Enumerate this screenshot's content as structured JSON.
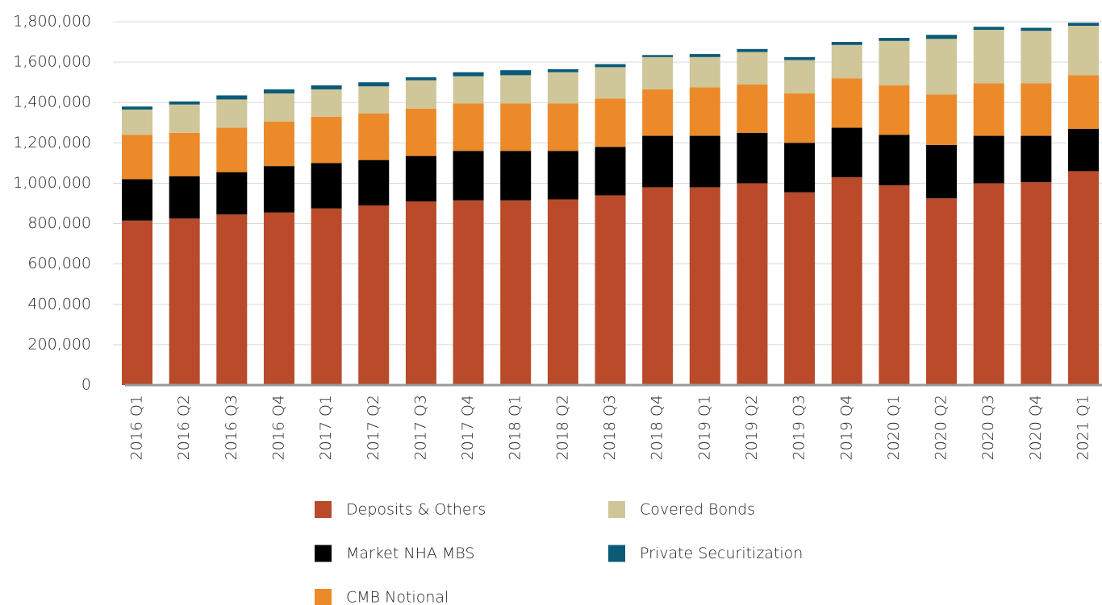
{
  "chart_data": {
    "type": "bar",
    "stacked": true,
    "categories": [
      "2016 Q1",
      "2016 Q2",
      "2016 Q3",
      "2016 Q4",
      "2017 Q1",
      "2017 Q2",
      "2017 Q3",
      "2017 Q4",
      "2018 Q1",
      "2018 Q2",
      "2018 Q3",
      "2018 Q4",
      "2019 Q1",
      "2019 Q2",
      "2019 Q3",
      "2019 Q4",
      "2020 Q1",
      "2020 Q2",
      "2020 Q3",
      "2020 Q4",
      "2021 Q1"
    ],
    "series": [
      {
        "name": "Deposits & Others",
        "color": "#b94a2a",
        "values": [
          815000,
          825000,
          845000,
          855000,
          875000,
          890000,
          910000,
          915000,
          915000,
          920000,
          940000,
          980000,
          980000,
          1000000,
          955000,
          1030000,
          990000,
          925000,
          1000000,
          1005000,
          1060000
        ]
      },
      {
        "name": "Market NHA MBS",
        "color": "#000000",
        "values": [
          205000,
          210000,
          210000,
          230000,
          225000,
          225000,
          225000,
          245000,
          245000,
          240000,
          240000,
          255000,
          255000,
          250000,
          245000,
          245000,
          250000,
          265000,
          235000,
          230000,
          210000
        ]
      },
      {
        "name": "CMB Notional",
        "color": "#ec8a2a",
        "values": [
          220000,
          215000,
          220000,
          220000,
          230000,
          230000,
          235000,
          235000,
          235000,
          235000,
          240000,
          230000,
          240000,
          240000,
          245000,
          245000,
          245000,
          250000,
          260000,
          260000,
          265000
        ]
      },
      {
        "name": "Covered Bonds",
        "color": "#cfc79a",
        "values": [
          125000,
          140000,
          140000,
          140000,
          135000,
          135000,
          140000,
          135000,
          140000,
          155000,
          155000,
          160000,
          150000,
          160000,
          165000,
          165000,
          220000,
          275000,
          265000,
          260000,
          245000
        ]
      },
      {
        "name": "Private Securitization",
        "color": "#0a5a78",
        "values": [
          15000,
          15000,
          20000,
          20000,
          20000,
          20000,
          15000,
          20000,
          25000,
          15000,
          15000,
          10000,
          15000,
          15000,
          15000,
          15000,
          15000,
          20000,
          15000,
          15000,
          15000
        ]
      }
    ],
    "ylim": [
      0,
      1800000
    ],
    "yticks": [
      0,
      {
        "value": 200000,
        "label": "200,000"
      },
      {
        "value": 400000,
        "label": "400,000"
      },
      {
        "value": 600000,
        "label": "600,000"
      },
      {
        "value": 800000,
        "label": "800,000"
      },
      {
        "value": 1000000,
        "label": "1,000,000"
      },
      {
        "value": 1200000,
        "label": "1,200,000"
      },
      {
        "value": 1400000,
        "label": "1,400,000"
      },
      {
        "value": 1600000,
        "label": "1,600,000"
      },
      {
        "value": 1800000,
        "label": "1,800,000"
      }
    ],
    "grid": true,
    "legend": "bottom"
  }
}
